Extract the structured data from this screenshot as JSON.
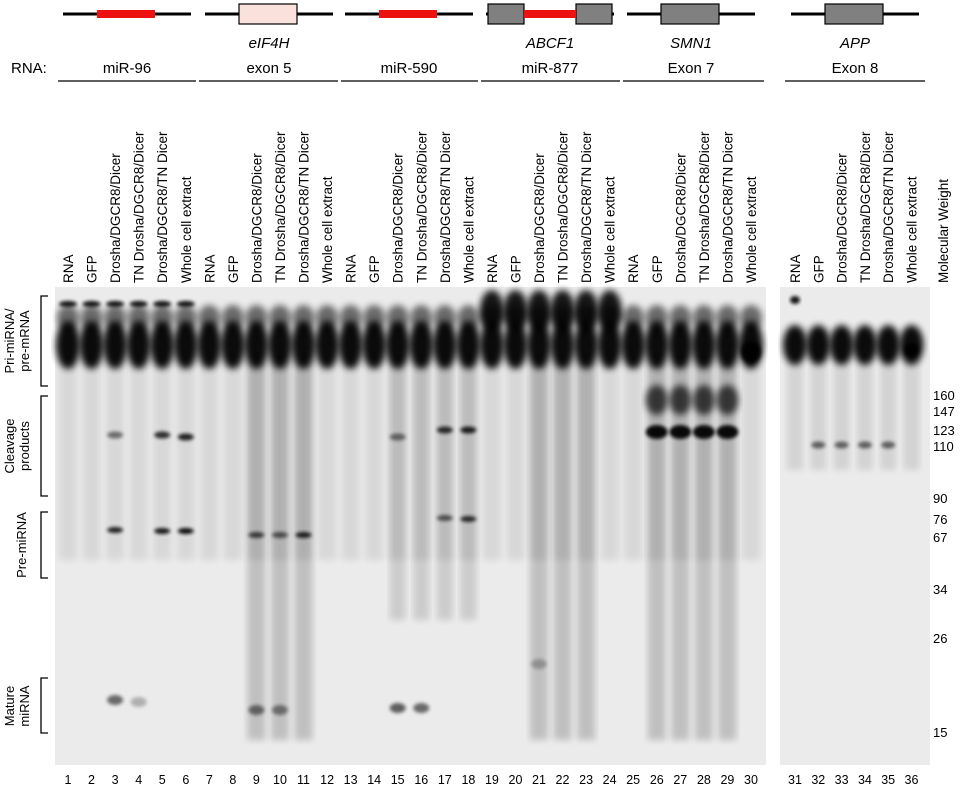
{
  "rna_label": "RNA:",
  "panels": [
    {
      "gene": "",
      "label": "miR-96",
      "schematic": "mirna",
      "lanes": [
        "RNA",
        "GFP",
        "Drosha/DGCR8/Dicer",
        "TN Drosha/DGCR8/Dicer",
        "Drosha/DGCR8/TN Dicer",
        "Whole cell extract"
      ],
      "numbers": [
        "1",
        "2",
        "3",
        "4",
        "5",
        "6"
      ]
    },
    {
      "gene": "eIF4H",
      "label": "exon 5",
      "schematic": "exon-pink",
      "lanes": [
        "RNA",
        "GFP",
        "Drosha/DGCR8/Dicer",
        "TN Drosha/DGCR8/Dicer",
        "Drosha/DGCR8/TN Dicer",
        "Whole cell extract"
      ],
      "numbers": [
        "7",
        "8",
        "9",
        "10",
        "11",
        "12"
      ]
    },
    {
      "gene": "",
      "label": "miR-590",
      "schematic": "mirna",
      "lanes": [
        "RNA",
        "GFP",
        "Drosha/DGCR8/Dicer",
        "TN Drosha/DGCR8/Dicer",
        "Drosha/DGCR8/TN Dicer",
        "Whole cell extract"
      ],
      "numbers": [
        "13",
        "14",
        "15",
        "16",
        "17",
        "18"
      ]
    },
    {
      "gene": "ABCF1",
      "label": "miR-877",
      "schematic": "mirtron",
      "lanes": [
        "RNA",
        "GFP",
        "Drosha/DGCR8/Dicer",
        "TN Drosha/DGCR8/Dicer",
        "Drosha/DGCR8/TN Dicer",
        "Whole cell extract"
      ],
      "numbers": [
        "19",
        "20",
        "21",
        "22",
        "23",
        "24"
      ]
    },
    {
      "gene": "SMN1",
      "label": "Exon 7",
      "schematic": "exon-grey",
      "lanes": [
        "RNA",
        "GFP",
        "Drosha/DGCR8/Dicer",
        "TN Drosha/DGCR8/Dicer",
        "Drosha/DGCR8/TN Dicer",
        "Whole cell extract"
      ],
      "numbers": [
        "25",
        "26",
        "27",
        "28",
        "29",
        "30"
      ]
    },
    {
      "gene": "APP",
      "label": "Exon 8",
      "schematic": "exon-grey",
      "lanes": [
        "RNA",
        "GFP",
        "Drosha/DGCR8/Dicer",
        "TN Drosha/DGCR8/Dicer",
        "Drosha/DGCR8/TN Dicer",
        "Whole cell extract"
      ],
      "numbers": [
        "31",
        "32",
        "33",
        "34",
        "35",
        "36"
      ]
    }
  ],
  "side_labels": [
    {
      "lines": [
        "Pri-miRNA/",
        "pre-mRNA"
      ]
    },
    {
      "lines": [
        "Cleavage",
        "products"
      ]
    },
    {
      "lines": [
        "Pre-miRNA"
      ]
    },
    {
      "lines": [
        "Mature",
        "miRNA"
      ]
    }
  ],
  "mw_title": "Molecular Weight",
  "molecular_weights": [
    "160",
    "147",
    "123",
    "110",
    "90",
    "76",
    "67",
    "34",
    "26",
    "15"
  ],
  "colors": {
    "mirna_red": "#ee1111",
    "exon_pink": "#fbe1dc",
    "exon_grey": "#808080",
    "gel_background": "#ebebeb",
    "band": "#000000"
  }
}
